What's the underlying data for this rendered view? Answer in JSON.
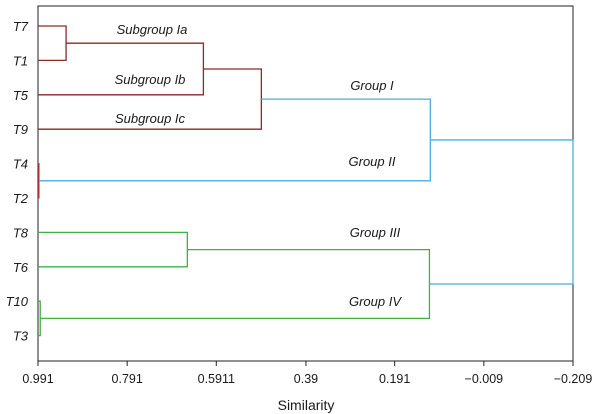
{
  "chart_data": {
    "type": "dendrogram",
    "xlabel": "Similarity",
    "xlim": [
      0.991,
      -0.209
    ],
    "x_ticks": [
      "0.991",
      "0.791",
      "0.5911",
      "0.39",
      "0.191",
      "−0.009",
      "−0.209"
    ],
    "x_tick_values": [
      0.991,
      0.791,
      0.5911,
      0.39,
      0.191,
      -0.009,
      -0.209
    ],
    "leaves": [
      "T7",
      "T1",
      "T5",
      "T9",
      "T4",
      "T2",
      "T8",
      "T6",
      "T10",
      "T3"
    ],
    "merges": [
      {
        "id": "m1",
        "left": "T7",
        "right": "T1",
        "similarity": 0.928,
        "color": "#8b2a2a"
      },
      {
        "id": "m2",
        "left": "m1",
        "right": "T5",
        "similarity": 0.62,
        "color": "#8b2a2a"
      },
      {
        "id": "m3",
        "left": "m2",
        "right": "T9",
        "similarity": 0.49,
        "color": "#8b2a2a"
      },
      {
        "id": "m4",
        "left": "T4",
        "right": "T2",
        "similarity": 0.989,
        "color": "#cc3333"
      },
      {
        "id": "m5",
        "left": "m3",
        "right": "m4",
        "similarity": 0.111,
        "color": "#4aaee0"
      },
      {
        "id": "m6",
        "left": "T8",
        "right": "T6",
        "similarity": 0.656,
        "color": "#44b044"
      },
      {
        "id": "m7",
        "left": "T10",
        "right": "T3",
        "similarity": 0.986,
        "color": "#44b044"
      },
      {
        "id": "m8",
        "left": "m6",
        "right": "m7",
        "similarity": 0.113,
        "color": "#44b044"
      },
      {
        "id": "m9",
        "left": "m5",
        "right": "m8",
        "similarity": -0.209,
        "color": "#4aaee0"
      }
    ],
    "annotations": [
      "Subgroup Ia",
      "Subgroup Ib",
      "Subgroup Ic",
      "Group I",
      "Group II",
      "Group III",
      "Group IV"
    ]
  }
}
